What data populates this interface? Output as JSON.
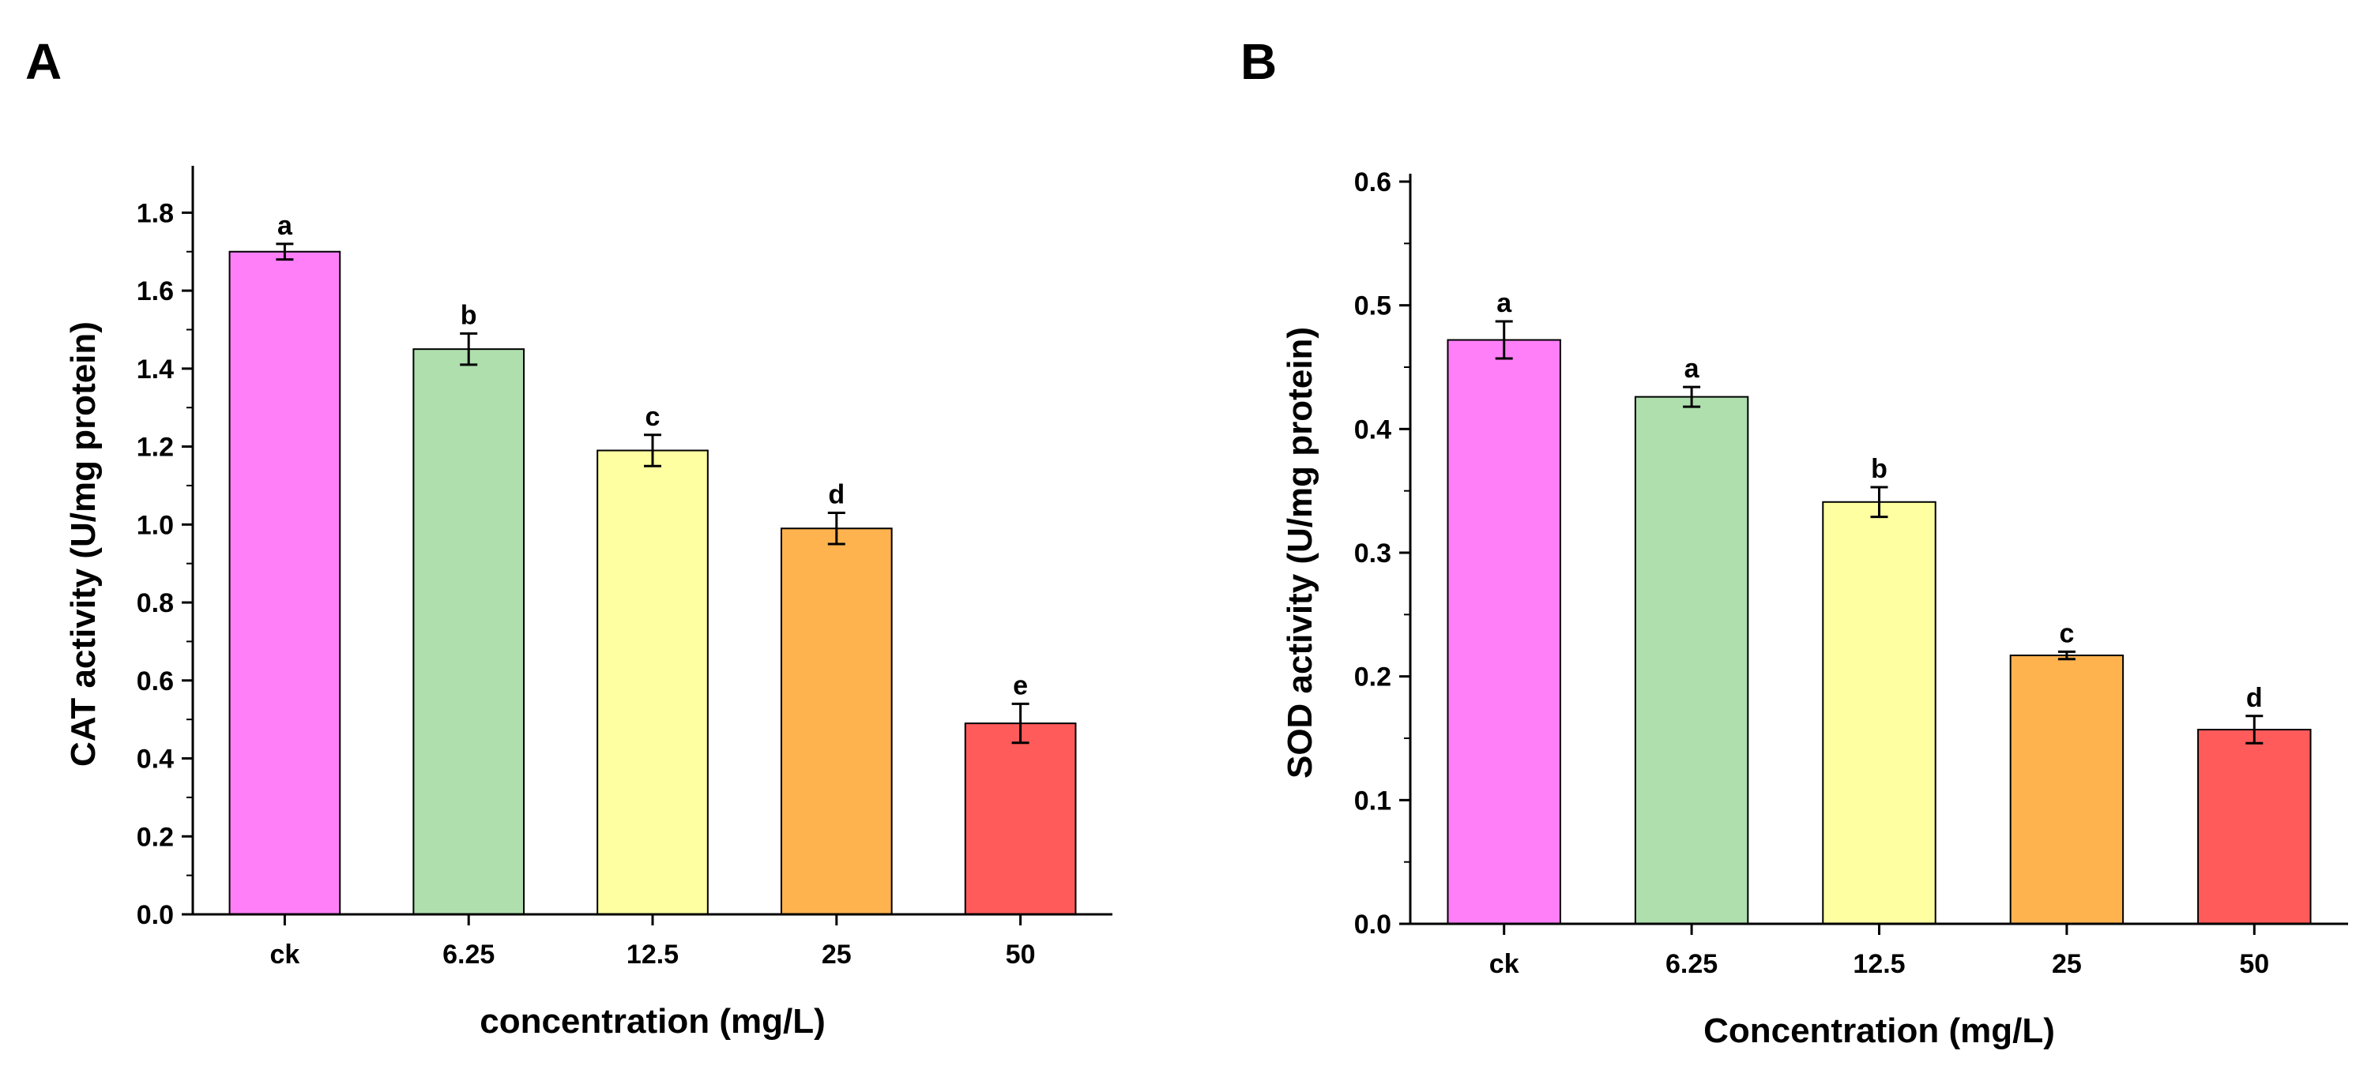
{
  "chart_data": [
    {
      "panel_label": "A",
      "type": "bar",
      "categories": [
        "ck",
        "6.25",
        "12.5",
        "25",
        "50"
      ],
      "values": [
        1.7,
        1.45,
        1.19,
        0.99,
        0.49
      ],
      "errors": [
        0.02,
        0.04,
        0.04,
        0.04,
        0.05
      ],
      "significance": [
        "a",
        "b",
        "c",
        "d",
        "e"
      ],
      "colors": [
        "#ff7ff8",
        "#aedfad",
        "#feffa1",
        "#feb34f",
        "#ff5b5a"
      ],
      "xlabel": "concentration (mg/L)",
      "ylabel": "CAT activity (U/mg protein)",
      "ylim": [
        0,
        1.9
      ],
      "yticks": [
        "0.0",
        "0.2",
        "0.4",
        "0.6",
        "0.8",
        "1.0",
        "1.2",
        "1.4",
        "1.6",
        "1.8"
      ],
      "grid": false
    },
    {
      "panel_label": "B",
      "type": "bar",
      "categories": [
        "ck",
        "6.25",
        "12.5",
        "25",
        "50"
      ],
      "values": [
        0.472,
        0.426,
        0.341,
        0.217,
        0.157
      ],
      "errors": [
        0.015,
        0.008,
        0.012,
        0.003,
        0.011
      ],
      "significance": [
        "a",
        "a",
        "b",
        "c",
        "d"
      ],
      "colors": [
        "#ff7ff8",
        "#aedfad",
        "#feffa1",
        "#feb34f",
        "#ff5b5a"
      ],
      "xlabel": "Concentration (mg/L)",
      "ylabel": "SOD activity (U/mg protein)",
      "ylim": [
        0,
        0.6
      ],
      "yticks": [
        "0.0",
        "0.1",
        "0.2",
        "0.3",
        "0.4",
        "0.5",
        "0.6"
      ],
      "grid": false
    }
  ]
}
